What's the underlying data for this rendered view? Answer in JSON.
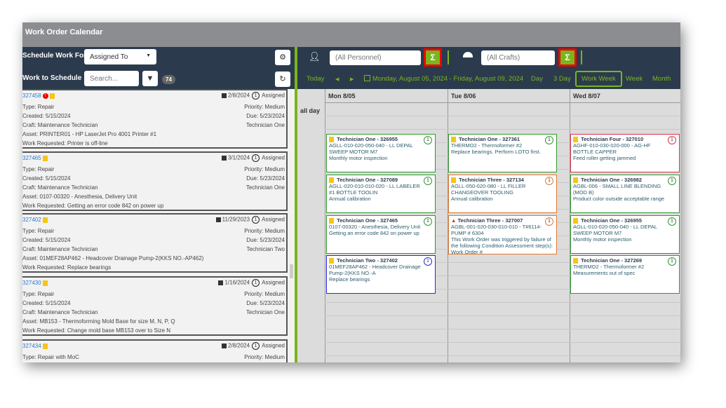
{
  "window": {
    "title": "Work Order Calendar"
  },
  "left": {
    "schedule_for_label": "Schedule Work For",
    "schedule_for_value": "Assigned To",
    "work_to_schedule_label": "Work to Schedule",
    "search_placeholder": "Search...",
    "count": "74",
    "cards": [
      {
        "id": "327458",
        "alert": true,
        "date": "2/8/2024",
        "count": "1",
        "status": "Assigned",
        "type": "Type: Repair",
        "priority": "Priority: Medium",
        "created": "Created: 5/15/2024",
        "due": "Due: 5/23/2024",
        "craft": "Craft: Maintenance Technician",
        "tech": "Technician One",
        "asset": "Asset: PRINTER01 - HP LaserJet Pro 4001 Printer #1",
        "request": "Work Requested: Printer is off-line"
      },
      {
        "id": "327465",
        "alert": false,
        "date": "3/1/2024",
        "count": "1",
        "status": "Assigned",
        "type": "Type: Repair",
        "priority": "Priority: Medium",
        "created": "Created: 5/15/2024",
        "due": "Due: 5/23/2024",
        "craft": "Craft: Maintenance Technician",
        "tech": "Technician One",
        "asset": "Asset: 0107-00320 - Anesthesia, Delivery Unit",
        "request": "Work Requested: Getting an error code 842 on power up"
      },
      {
        "id": "327402",
        "alert": false,
        "date": "11/29/2023",
        "count": "1",
        "status": "Assigned",
        "type": "Type: Repair",
        "priority": "Priority: Medium",
        "created": "Created: 5/15/2024",
        "due": "Due: 5/23/2024",
        "craft": "Craft: Maintenance Technician",
        "tech": "Technician Two",
        "asset": "Asset: 01MEF28AP462 - Headcover Drainage Pump-2(KKS NO.-AP462)",
        "request": "Work Requested: Replace bearings"
      },
      {
        "id": "327430",
        "alert": false,
        "date": "1/16/2024",
        "count": "1",
        "status": "Assigned",
        "type": "Type: Repair",
        "priority": "Priority: Medium",
        "created": "Created: 5/15/2024",
        "due": "Due: 5/23/2024",
        "craft": "Craft: Maintenance Technician",
        "tech": "Technician One",
        "asset": "Asset: MB153 - Thermoforming Mold Base for size M, N, P, Q",
        "request": "Work Requested: Change mold base MB153 over to Size N"
      },
      {
        "id": "327434",
        "alert": false,
        "date": "2/8/2024",
        "count": "1",
        "status": "Assigned",
        "type": "Type: Repair with MoC",
        "priority": "Priority: Medium",
        "created": "",
        "due": "",
        "craft": "",
        "tech": "",
        "asset": "",
        "request": ""
      }
    ]
  },
  "right": {
    "personnel_placeholder": "(All Personnel)",
    "crafts_placeholder": "(All Crafts)",
    "sigma": "Σ",
    "today": "Today",
    "date_range": "Monday, August 05, 2024 - Friday, August 09, 2024",
    "views": [
      "Day",
      "3 Day",
      "Work Week",
      "Week",
      "Month"
    ],
    "active_view": "Work Week",
    "all_day": "all day",
    "days": [
      "Mon 8/05",
      "Tue 8/06",
      "Wed 8/07"
    ],
    "events": [
      [
        {
          "title": "Technician One - 326955",
          "line": "AGLL-010-020-050-040 - LL DEPAL SWEEP MOTOR M7",
          "desc": "Monthly motor inspection",
          "n": "1",
          "color": "#2f9a2f",
          "warn": false
        },
        {
          "title": "Technician One - 327089",
          "line": "AGLL-020-010-010-020 - LL LABELER #1 BOTTLE TOOLIN",
          "desc": "Annual calibration",
          "n": "1",
          "color": "#2f9a2f",
          "warn": false
        },
        {
          "title": "Technician One - 327465",
          "line": "0107-00320 - Anesthesia, Delivery Unit",
          "desc": "Getting an error code 842 on power up",
          "n": "1",
          "color": "#2f9a2f",
          "warn": false
        },
        {
          "title": "Technician Two - 327402",
          "line": "01MEF28AP462 - Headcover Drainage Pump-2(KKS NO.-A",
          "desc": "Replace bearings",
          "n": "1",
          "color": "#2a2ae0",
          "warn": false
        }
      ],
      [
        {
          "title": "Technician One - 327361",
          "line": "THERMO2 - Thermoformer #2",
          "desc": "Replace bearings. Perform LOTO first.",
          "n": "1",
          "color": "#2f9a2f",
          "warn": false
        },
        {
          "title": "Technician Three - 327134",
          "line": "AGLL-050-020-080 - LL FILLER CHANGEOVER TOOLING",
          "desc": "Annual calibration",
          "n": "1",
          "color": "#e07a30",
          "warn": false
        },
        {
          "title": "Technician Three - 327007",
          "line": "AGBL-001-020-030-010-010 - T#6114-PUMP # 6304",
          "desc": "This Work Order was triggered by failure of the following Condition Assessment step(s): Work Order #",
          "n": "1",
          "color": "#e07a30",
          "warn": true
        }
      ],
      [
        {
          "title": "Technician Four - 327010",
          "line": "AGHF-010-030-020-000 - AG-HF BOTTLE CAPPER",
          "desc": "Feed roller getting jammed",
          "n": "1",
          "color": "#e0304a",
          "warn": false
        },
        {
          "title": "Technician One - 326982",
          "line": "AGBL-006 - SMALL LINE BLENDING (MOD B)",
          "desc": "Product color outside acceptable range",
          "n": "1",
          "color": "#2f9a2f",
          "warn": false
        },
        {
          "title": "Technician One - 326955",
          "line": "AGLL-010-020-050-040 - LL DEPAL SWEEP MOTOR M7",
          "desc": "Monthly motor inspection",
          "n": "1",
          "color": "#2f9a2f",
          "warn": false
        },
        {
          "title": "Technician One - 327269",
          "line": "THERMO2 - Thermoformer #2",
          "desc": "Measurements out of spec",
          "n": "1",
          "color": "#2f9a2f",
          "warn": false
        }
      ]
    ]
  }
}
